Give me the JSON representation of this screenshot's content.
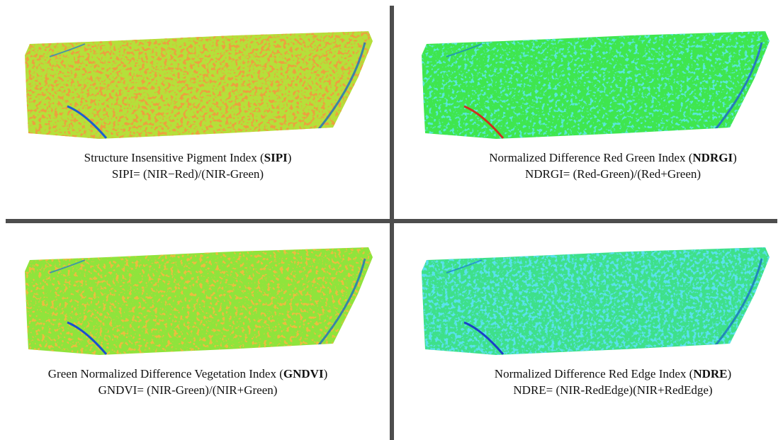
{
  "panels": [
    {
      "title_prefix": "Structure Insensitive Pigment Index (",
      "abbr": "SIPI",
      "title_suffix": ")",
      "formula": "SIPI= (NIR−Red)/(NIR-Green)"
    },
    {
      "title_prefix": "Normalized Difference Red Green Index (",
      "abbr": "NDRGI",
      "title_suffix": ")",
      "formula": "NDRGI= (Red-Green)/(Red+Green)"
    },
    {
      "title_prefix": "Green Normalized Difference Vegetation Index (",
      "abbr": "GNDVI",
      "title_suffix": ")",
      "formula": "GNDVI= (NIR-Green)/(NIR+Green)"
    },
    {
      "title_prefix": "Normalized Difference Red Edge Index (",
      "abbr": "NDRE",
      "title_suffix": ")",
      "formula": "NDRE= (NIR-RedEdge)(NIR+RedEdge)"
    }
  ]
}
